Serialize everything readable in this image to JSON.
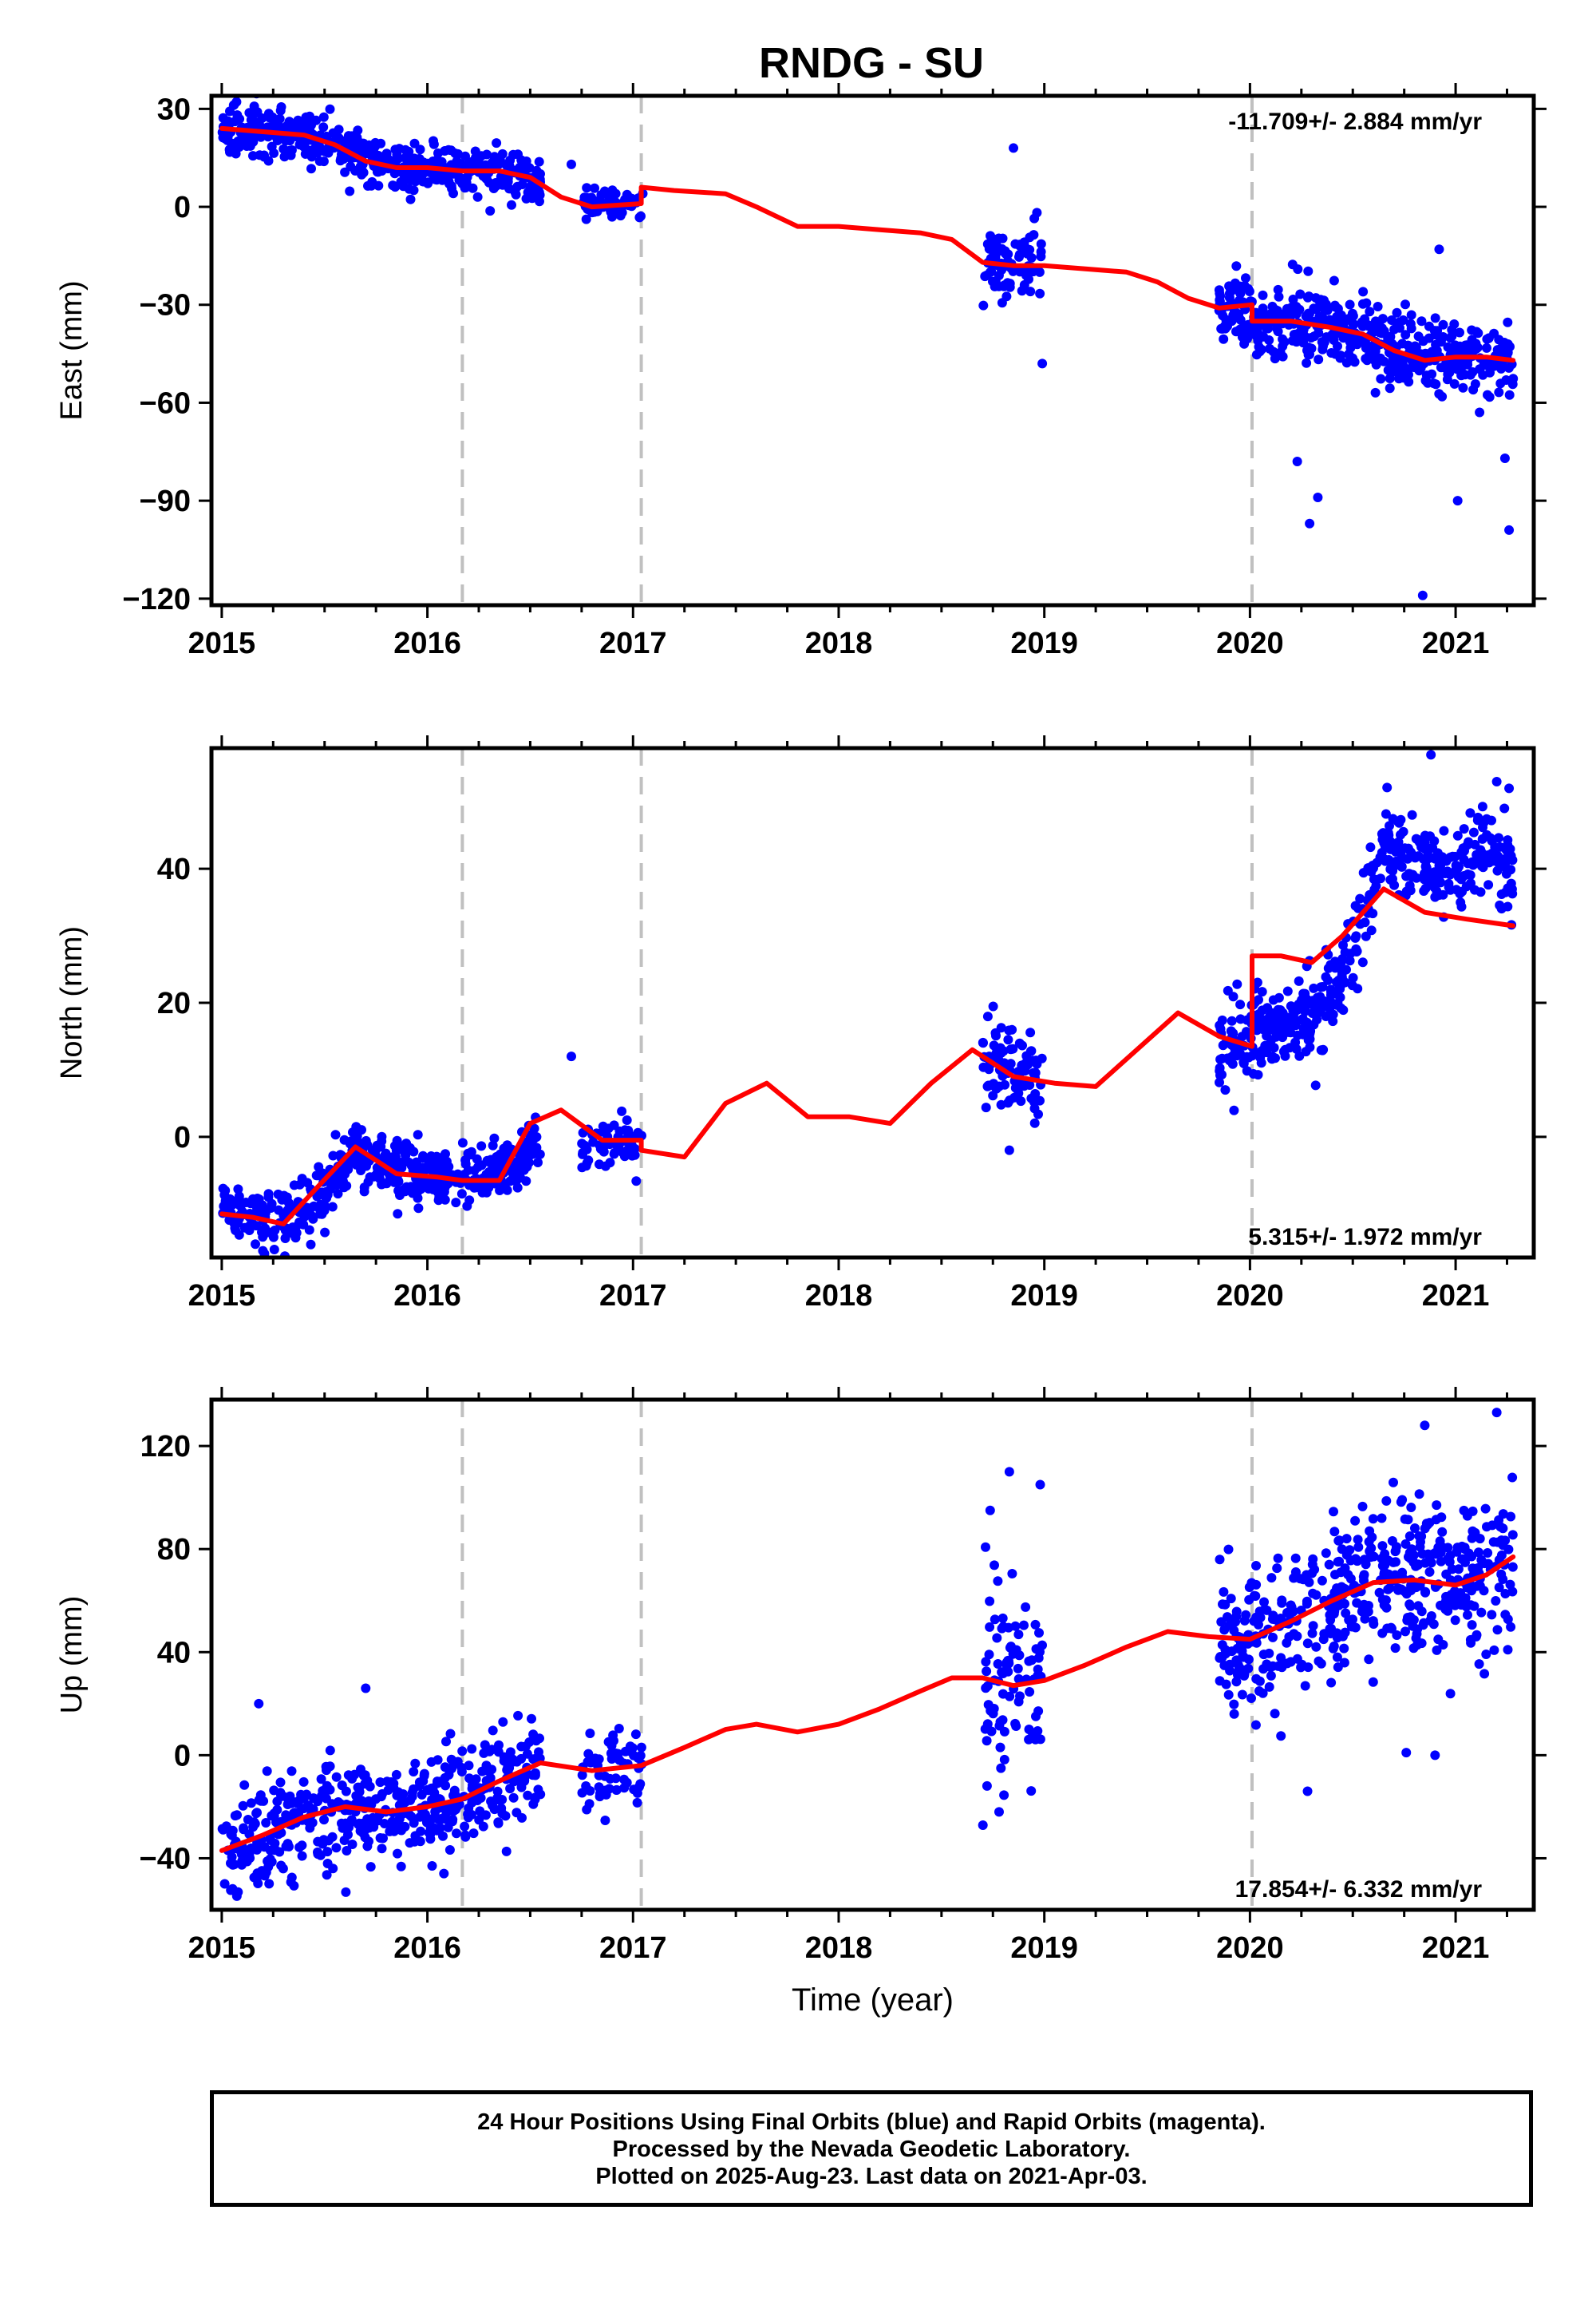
{
  "title": "RNDG - SU",
  "colors": {
    "final_orbits": "#0000ff",
    "model": "#ff0000",
    "offset_lines": "#c0c0c0",
    "frame": "#000000"
  },
  "chart_data": [
    {
      "type": "scatter",
      "ylabel": "East (mm)",
      "xlabel": "",
      "xlim": [
        2014.95,
        2021.38
      ],
      "ylim": [
        -122,
        34
      ],
      "xticks": [
        2015,
        2016,
        2017,
        2018,
        2019,
        2020,
        2021
      ],
      "xtick_labels": [
        "2015",
        "2016",
        "2017",
        "2018",
        "2019",
        "2020",
        "2021"
      ],
      "yticks": [
        30,
        0,
        -30,
        -60,
        -90,
        -120
      ],
      "ytick_labels": [
        "30",
        "0",
        "−30",
        "−60",
        "−90",
        "−120"
      ],
      "rate_text": "-11.709+/- 2.884 mm/yr",
      "rate_position": "top-right",
      "offset_epochs": [
        2016.17,
        2017.04,
        2020.01
      ],
      "segments": [
        {
          "x0": 2015.0,
          "x1": 2016.55,
          "n": 500,
          "noise": 3.5
        },
        {
          "x0": 2016.75,
          "x1": 2017.05,
          "n": 60,
          "noise": 2.2
        },
        {
          "x0": 2018.7,
          "x1": 2018.99,
          "n": 90,
          "noise": 6
        },
        {
          "x0": 2019.85,
          "x1": 2021.28,
          "n": 500,
          "noise": 5.5
        }
      ],
      "outliers": [
        [
          2018.85,
          18
        ],
        [
          2018.99,
          -48
        ],
        [
          2020.23,
          -78
        ],
        [
          2020.29,
          -97
        ],
        [
          2020.33,
          -89
        ],
        [
          2020.84,
          -119
        ],
        [
          2020.92,
          -13
        ],
        [
          2021.01,
          -90
        ],
        [
          2021.24,
          -77
        ],
        [
          2021.26,
          -99
        ],
        [
          2020.55,
          -26
        ],
        [
          2016.7,
          13
        ]
      ],
      "model": {
        "x": [
          2015.0,
          2015.2,
          2015.4,
          2015.55,
          2015.7,
          2015.85,
          2016.0,
          2016.17,
          2016.17,
          2016.35,
          2016.5,
          2016.65,
          2016.8,
          2017.04,
          2017.04,
          2017.2,
          2017.45,
          2017.6,
          2017.8,
          2018.0,
          2018.2,
          2018.4,
          2018.55,
          2018.7,
          2018.85,
          2019.0,
          2019.2,
          2019.4,
          2019.55,
          2019.7,
          2019.85,
          2020.01,
          2020.01,
          2020.2,
          2020.4,
          2020.55,
          2020.7,
          2020.85,
          2021.0,
          2021.15,
          2021.28
        ],
        "y": [
          24,
          23,
          22,
          19,
          14,
          12,
          12,
          11,
          11,
          11,
          9,
          3,
          0,
          1,
          6,
          5,
          4,
          0,
          -6,
          -6,
          -7,
          -8,
          -10,
          -17,
          -18,
          -18,
          -19,
          -20,
          -23,
          -28,
          -31,
          -30,
          -35,
          -35,
          -37,
          -39,
          -44,
          -47,
          -46,
          -46,
          -47
        ]
      }
    },
    {
      "type": "scatter",
      "ylabel": "North (mm)",
      "xlabel": "",
      "xlim": [
        2014.95,
        2021.38
      ],
      "ylim": [
        -18,
        58
      ],
      "xticks": [
        2015,
        2016,
        2017,
        2018,
        2019,
        2020,
        2021
      ],
      "xtick_labels": [
        "2015",
        "2016",
        "2017",
        "2018",
        "2019",
        "2020",
        "2021"
      ],
      "yticks": [
        40,
        20,
        0
      ],
      "ytick_labels": [
        "40",
        "20",
        "0"
      ],
      "rate_text": "5.315+/- 1.972 mm/yr",
      "rate_position": "bottom-right",
      "offset_epochs": [
        2016.17,
        2017.04,
        2020.01
      ],
      "segments": [
        {
          "x0": 2015.0,
          "x1": 2016.55,
          "n": 500,
          "noise": 2.3
        },
        {
          "x0": 2016.75,
          "x1": 2017.05,
          "n": 60,
          "noise": 1.8
        },
        {
          "x0": 2018.7,
          "x1": 2018.99,
          "n": 90,
          "noise": 3.5
        },
        {
          "x0": 2019.85,
          "x1": 2021.28,
          "n": 500,
          "noise": 3.2
        }
      ],
      "outliers": [
        [
          2015.2,
          -17
        ],
        [
          2016.7,
          12
        ],
        [
          2018.83,
          -2
        ],
        [
          2020.88,
          57
        ],
        [
          2021.2,
          53
        ],
        [
          2021.26,
          52
        ],
        [
          2019.88,
          7
        ]
      ],
      "trend": {
        "x": [
          2015.0,
          2015.2,
          2015.35,
          2015.5,
          2015.65,
          2015.8,
          2016.0,
          2016.2,
          2016.35,
          2016.5,
          2016.8,
          2017.0,
          2018.7,
          2019.0,
          2019.85,
          2020.05,
          2020.2,
          2020.35,
          2020.5,
          2020.65,
          2020.8,
          2021.0,
          2021.15,
          2021.28
        ],
        "y": [
          -10,
          -12,
          -13,
          -8,
          -2,
          -4,
          -6,
          -6,
          -5,
          -2,
          -1,
          -1,
          11,
          8,
          13,
          17,
          17,
          18,
          27,
          43,
          41,
          40,
          43,
          39
        ]
      },
      "model": {
        "x": [
          2015.0,
          2015.15,
          2015.3,
          2015.45,
          2015.65,
          2015.85,
          2016.05,
          2016.17,
          2016.35,
          2016.5,
          2016.65,
          2016.85,
          2017.04,
          2017.04,
          2017.25,
          2017.45,
          2017.65,
          2017.85,
          2018.05,
          2018.25,
          2018.45,
          2018.65,
          2018.85,
          2019.05,
          2019.25,
          2019.45,
          2019.65,
          2019.85,
          2020.01,
          2020.01,
          2020.15,
          2020.3,
          2020.45,
          2020.65,
          2020.85,
          2021.05,
          2021.28
        ],
        "y": [
          -11.5,
          -12,
          -13,
          -8,
          -1.5,
          -5.5,
          -6,
          -6.5,
          -6.5,
          2,
          4,
          -0.5,
          -0.5,
          -2,
          -3,
          5,
          8,
          3,
          3,
          2,
          8,
          13,
          9,
          8,
          7.5,
          13,
          18.5,
          15,
          13.5,
          27,
          27,
          26,
          30,
          37,
          33.5,
          32.5,
          31.5
        ]
      }
    },
    {
      "type": "scatter",
      "ylabel": "Up (mm)",
      "xlabel": "Time (year)",
      "xlim": [
        2014.95,
        2021.38
      ],
      "ylim": [
        -60,
        138
      ],
      "xticks": [
        2015,
        2016,
        2017,
        2018,
        2019,
        2020,
        2021
      ],
      "xtick_labels": [
        "2015",
        "2016",
        "2017",
        "2018",
        "2019",
        "2020",
        "2021"
      ],
      "yticks": [
        120,
        80,
        40,
        0,
        -40
      ],
      "ytick_labels": [
        "120",
        "80",
        "40",
        "0",
        "−40"
      ],
      "rate_text": "17.854+/- 6.332 mm/yr",
      "rate_position": "bottom-right",
      "offset_epochs": [
        2016.17,
        2017.04,
        2020.01
      ],
      "segments": [
        {
          "x0": 2015.0,
          "x1": 2016.55,
          "n": 500,
          "noise": 10
        },
        {
          "x0": 2016.75,
          "x1": 2017.05,
          "n": 60,
          "noise": 7
        },
        {
          "x0": 2018.7,
          "x1": 2018.99,
          "n": 90,
          "noise": 22
        },
        {
          "x0": 2019.85,
          "x1": 2021.28,
          "n": 500,
          "noise": 15
        }
      ],
      "outliers": [
        [
          2015.18,
          20
        ],
        [
          2015.7,
          26
        ],
        [
          2018.83,
          110
        ],
        [
          2018.98,
          105
        ],
        [
          2018.78,
          -22
        ],
        [
          2020.28,
          -14
        ],
        [
          2020.85,
          128
        ],
        [
          2020.9,
          0
        ],
        [
          2021.2,
          133
        ],
        [
          2020.76,
          1
        ],
        [
          2021.1,
          46
        ]
      ],
      "model": {
        "x": [
          2015.0,
          2015.2,
          2015.4,
          2015.6,
          2015.8,
          2016.0,
          2016.17,
          2016.35,
          2016.55,
          2016.8,
          2017.04,
          2017.25,
          2017.45,
          2017.6,
          2017.8,
          2018.0,
          2018.2,
          2018.4,
          2018.55,
          2018.7,
          2018.85,
          2019.0,
          2019.2,
          2019.4,
          2019.6,
          2019.8,
          2020.0,
          2020.2,
          2020.4,
          2020.6,
          2020.8,
          2021.0,
          2021.15,
          2021.28
        ],
        "y": [
          -37,
          -31,
          -24,
          -20,
          -22,
          -20,
          -17,
          -10,
          -3,
          -6,
          -4,
          3,
          10,
          12,
          9,
          12,
          18,
          25,
          30,
          30,
          27,
          29,
          35,
          42,
          48,
          46,
          45,
          52,
          60,
          67,
          68,
          66,
          70,
          77
        ]
      }
    }
  ],
  "footer": {
    "line1": "24 Hour Positions Using Final Orbits (blue) and Rapid Orbits (magenta).",
    "line2": "Processed by the Nevada Geodetic Laboratory.",
    "line3": "Plotted on 2025-Aug-23. Last data on 2021-Apr-03."
  }
}
